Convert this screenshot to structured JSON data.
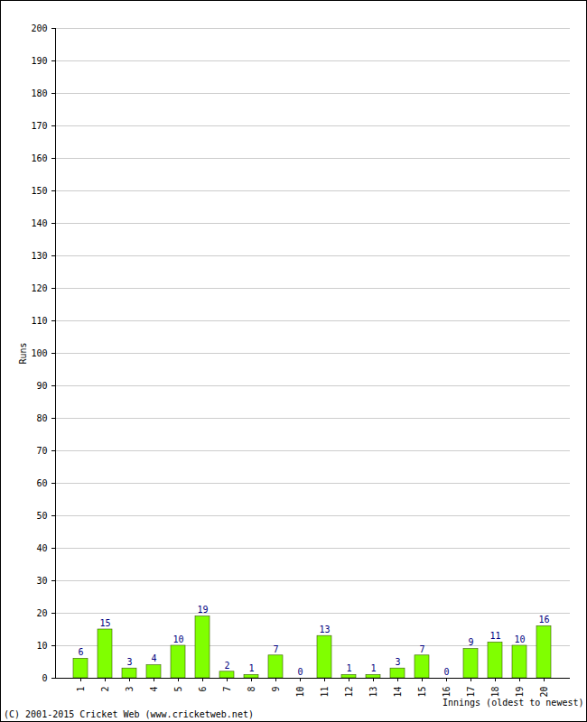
{
  "chart_data": {
    "type": "bar",
    "categories": [
      "1",
      "2",
      "3",
      "4",
      "5",
      "6",
      "7",
      "8",
      "9",
      "10",
      "11",
      "12",
      "13",
      "14",
      "15",
      "16",
      "17",
      "18",
      "19",
      "20"
    ],
    "values": [
      6,
      15,
      3,
      4,
      10,
      19,
      2,
      1,
      7,
      0,
      13,
      1,
      1,
      3,
      7,
      0,
      9,
      11,
      10,
      16
    ],
    "color": "#80ff00",
    "x_label": "Innings (oldest to newest)",
    "y_label": "Runs",
    "caption": "(C) 2001-2015 Cricket Web (www.cricketweb.net)",
    "ylim": [
      0,
      200
    ],
    "yticks": [
      0,
      10,
      20,
      30,
      40,
      50,
      60,
      70,
      80,
      90,
      100,
      110,
      120,
      130,
      140,
      150,
      160,
      170,
      180,
      190,
      200
    ],
    "grid": true,
    "data_labels": true
  }
}
